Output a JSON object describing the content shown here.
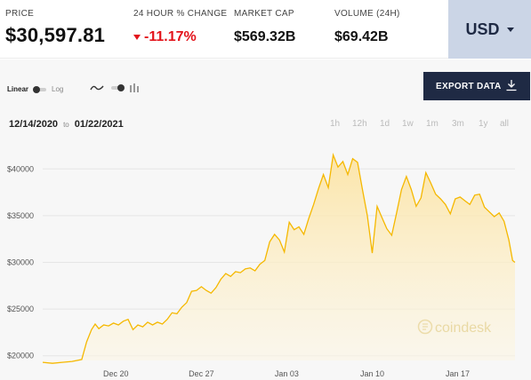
{
  "stats": {
    "price": {
      "label": "PRICE",
      "value": "$30,597.81"
    },
    "change": {
      "label": "24 HOUR % CHANGE",
      "value": "-11.17%"
    },
    "market_cap": {
      "label": "MARKET CAP",
      "value": "$569.32B"
    },
    "volume": {
      "label": "VOLUME (24H)",
      "value": "$69.42B"
    }
  },
  "currency": {
    "selected": "USD"
  },
  "scale_toggle": {
    "left": "Linear",
    "right": "Log"
  },
  "export_label": "EXPORT DATA",
  "date_range": {
    "start": "12/14/2020",
    "to": "to",
    "end": "01/22/2021"
  },
  "range_buttons": [
    "1h",
    "12h",
    "1d",
    "1w",
    "1m",
    "3m",
    "1y",
    "all"
  ],
  "watermark": "coindesk",
  "colors": {
    "line": "#f5b800",
    "fill": "#fce9b0",
    "navy": "#1f2a44",
    "down": "#e3131b",
    "currency_bg": "#cbd5e6"
  },
  "icons": {
    "chart_type_line": "line-chart-icon",
    "chart_type_bar": "bar-chart-icon",
    "export": "download-icon"
  },
  "chart_data": {
    "type": "area",
    "xlabel": "",
    "ylabel": "",
    "y_ticks": [
      20000,
      25000,
      30000,
      35000,
      40000
    ],
    "y_tick_labels": [
      "$20000",
      "$25000",
      "$30000",
      "$35000",
      "$40000"
    ],
    "x_ticks": [
      "Dec 20",
      "Dec 27",
      "Jan 03",
      "Jan 10",
      "Jan 17"
    ],
    "x_tick_days": [
      6,
      13,
      20,
      27,
      34
    ],
    "x_range_days": [
      0,
      38.7
    ],
    "ylim": [
      19500,
      42500
    ],
    "grid": "horizontal",
    "series": [
      {
        "x_days": [
          0,
          0.8,
          1.6,
          2.4,
          3.2,
          3.6,
          4.0,
          4.3,
          4.6,
          5.0,
          5.4,
          5.8,
          6.2,
          6.6,
          7.0,
          7.4,
          7.8,
          8.2,
          8.6,
          9.0,
          9.4,
          9.8,
          10.2,
          10.6,
          11.0,
          11.4,
          11.8,
          12.2,
          12.6,
          13.0,
          13.4,
          13.8,
          14.2,
          14.6,
          15.0,
          15.4,
          15.8,
          16.2,
          16.6,
          17.0,
          17.4,
          17.8,
          18.2,
          18.6,
          19.0,
          19.4,
          19.8,
          20.2,
          20.6,
          21.0,
          21.4,
          21.8,
          22.2,
          22.6,
          23.0,
          23.4,
          23.8,
          24.2,
          24.6,
          25.0,
          25.4,
          25.8,
          26.2,
          26.6,
          27.0,
          27.4,
          27.8,
          28.2,
          28.6,
          29.0,
          29.4,
          29.8,
          30.2,
          30.6,
          31.0,
          31.4,
          31.8,
          32.2,
          32.6,
          33.0,
          33.4,
          33.8,
          34.2,
          34.6,
          35.0,
          35.4,
          35.8,
          36.2,
          36.6,
          37.0,
          37.4,
          37.8,
          38.2,
          38.5,
          38.7
        ],
        "values": [
          19300,
          19200,
          19300,
          19400,
          19600,
          21500,
          22800,
          23400,
          22900,
          23300,
          23200,
          23500,
          23300,
          23700,
          23900,
          22800,
          23300,
          23100,
          23600,
          23300,
          23600,
          23400,
          23900,
          24600,
          24500,
          25200,
          25700,
          26900,
          27000,
          27400,
          27000,
          26700,
          27300,
          28200,
          28800,
          28500,
          29000,
          28900,
          29300,
          29400,
          29100,
          29800,
          30200,
          32200,
          33000,
          32400,
          31100,
          34300,
          33500,
          33800,
          33000,
          34700,
          36200,
          37900,
          39400,
          38000,
          41500,
          40200,
          40800,
          39400,
          41100,
          40700,
          37800,
          35000,
          31000,
          36000,
          34800,
          33600,
          32900,
          35300,
          37800,
          39200,
          37800,
          36000,
          36900,
          39600,
          38500,
          37300,
          36800,
          36200,
          35200,
          36800,
          37000,
          36600,
          36200,
          37200,
          37300,
          35900,
          35400,
          34900,
          35300,
          34400,
          32400,
          30200,
          30000
        ]
      }
    ]
  }
}
